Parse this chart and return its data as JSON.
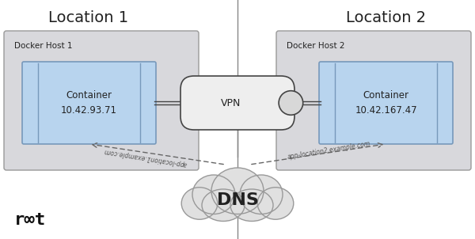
{
  "bg_color": "#ffffff",
  "loc1_title": "Location 1",
  "loc2_title": "Location 2",
  "host1_label": "Docker Host 1",
  "host2_label": "Docker Host 2",
  "container1_label": "Container\n10.42.93.71",
  "container2_label": "Container\n10.42.167.47",
  "vpn_label": "VPN",
  "dns_label": "DNS",
  "dns_label1": "app-location1.example.com",
  "dns_label2": "app-location2.example.com",
  "host_bg": "#d8d8dc",
  "host_border": "#999999",
  "container_bg": "#b8d4ee",
  "container_border": "#7799bb",
  "vpn_bg": "#eeeeee",
  "vpn_border": "#444444",
  "cloud_bg": "#e0e0e0",
  "cloud_border": "#999999",
  "line_color": "#444444",
  "arrow_color": "#666666",
  "sep_color": "#888888",
  "text_dark": "#222222",
  "text_mid": "#555555"
}
